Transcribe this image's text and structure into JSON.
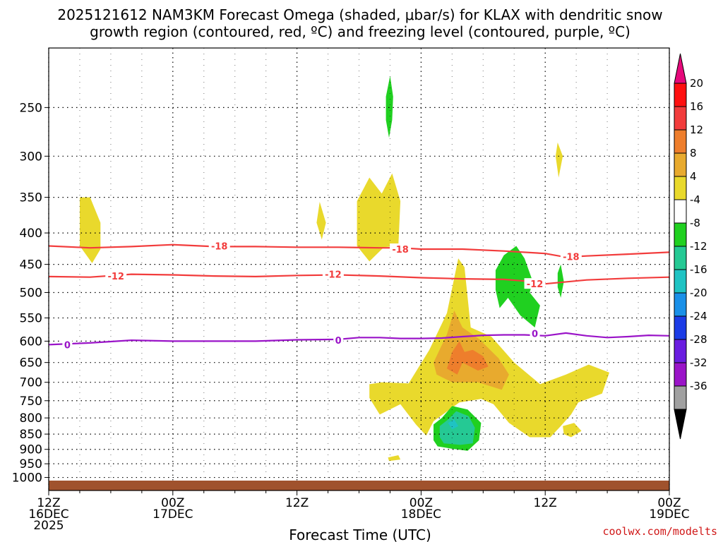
{
  "chart_data": {
    "type": "time-height contour",
    "title_line1": "2025121612 NAM3KM Forecast Omega (shaded, μbar/s) for KLAX with dendritic snow",
    "title_line2": "growth region (contoured, red, ºC) and freezing level (contoured, purple, ºC)",
    "xlabel": "Forecast Time (UTC)",
    "credit": "coolwx.com/modelts",
    "x_range_hours": [
      0,
      60
    ],
    "y_range_hpa": [
      1050,
      200
    ],
    "x_ticks": [
      {
        "h": 0,
        "l1": "12Z",
        "l2": "16DEC",
        "l3": "2025"
      },
      {
        "h": 12,
        "l1": "00Z",
        "l2": "17DEC",
        "l3": ""
      },
      {
        "h": 24,
        "l1": "12Z",
        "l2": "",
        "l3": ""
      },
      {
        "h": 36,
        "l1": "00Z",
        "l2": "18DEC",
        "l3": ""
      },
      {
        "h": 48,
        "l1": "12Z",
        "l2": "",
        "l3": ""
      },
      {
        "h": 60,
        "l1": "00Z",
        "l2": "19DEC",
        "l3": ""
      }
    ],
    "y_ticks": [
      250,
      300,
      350,
      400,
      450,
      500,
      550,
      600,
      650,
      700,
      750,
      800,
      850,
      900,
      950,
      1000
    ],
    "colorbar": {
      "labels": [
        "20",
        "16",
        "12",
        "8",
        "4",
        "-4",
        "-8",
        "-12",
        "-16",
        "-20",
        "-24",
        "-28",
        "-32",
        "-36"
      ],
      "colors": [
        "#ff1010",
        "#f23c3c",
        "#ee7e2c",
        "#e8aa2e",
        "#e9d92c",
        "#ffffff",
        "#20d020",
        "#25c994",
        "#1fc3c3",
        "#1a90e8",
        "#1c3ce6",
        "#6a1de0",
        "#9a14c8",
        "#a0a0a0"
      ],
      "top_color": "#e6097b",
      "bottom_color": "#000000"
    },
    "omega_regions": [
      {
        "name": "omega-pos-left-350",
        "value": 4,
        "color": "#e9d92c",
        "pts": [
          [
            3.0,
            350
          ],
          [
            4.0,
            350
          ],
          [
            5.0,
            385
          ],
          [
            5.0,
            425
          ],
          [
            4.2,
            448
          ],
          [
            3.0,
            420
          ]
        ]
      },
      {
        "name": "omega-pos-mid-380",
        "value": 4,
        "color": "#e9d92c",
        "pts": [
          [
            26.2,
            356
          ],
          [
            26.8,
            385
          ],
          [
            26.4,
            410
          ],
          [
            25.9,
            385
          ]
        ]
      },
      {
        "name": "omega-pos-mid-340",
        "value": 4,
        "color": "#e9d92c",
        "pts": [
          [
            29.8,
            355
          ],
          [
            31.0,
            325
          ],
          [
            32.2,
            345
          ],
          [
            33.2,
            320
          ],
          [
            34.0,
            355
          ],
          [
            33.8,
            420
          ],
          [
            32.4,
            422
          ],
          [
            31.0,
            445
          ],
          [
            29.8,
            420
          ]
        ]
      },
      {
        "name": "omega-pos-right-300",
        "value": 4,
        "color": "#e9d92c",
        "pts": [
          [
            49.2,
            285
          ],
          [
            49.7,
            300
          ],
          [
            49.3,
            325
          ],
          [
            49.0,
            300
          ]
        ]
      },
      {
        "name": "omega-pos-lower-main",
        "value": 4,
        "color": "#e9d92c",
        "pts": [
          [
            36.8,
            620
          ],
          [
            38.5,
            540
          ],
          [
            39.6,
            440
          ],
          [
            40.2,
            455
          ],
          [
            40.8,
            570
          ],
          [
            42.8,
            590
          ],
          [
            45.0,
            650
          ],
          [
            47.5,
            705
          ],
          [
            50.0,
            680
          ],
          [
            52.2,
            655
          ],
          [
            54.2,
            675
          ],
          [
            53.5,
            730
          ],
          [
            51.2,
            755
          ],
          [
            50.5,
            790
          ],
          [
            49.5,
            825
          ],
          [
            48.5,
            860
          ],
          [
            46.5,
            860
          ],
          [
            44.5,
            815
          ],
          [
            43.0,
            760
          ],
          [
            41.8,
            745
          ],
          [
            39.7,
            755
          ],
          [
            37.2,
            810
          ],
          [
            36.5,
            855
          ],
          [
            35.5,
            820
          ],
          [
            34.0,
            760
          ],
          [
            32.0,
            790
          ],
          [
            31.0,
            742
          ],
          [
            31.0,
            705
          ],
          [
            32.2,
            700
          ],
          [
            34.8,
            703
          ]
        ]
      },
      {
        "name": "omega-pos-small-850",
        "value": 4,
        "color": "#e9d92c",
        "pts": [
          [
            49.7,
            825
          ],
          [
            50.8,
            815
          ],
          [
            51.5,
            840
          ],
          [
            50.5,
            860
          ],
          [
            49.8,
            850
          ]
        ]
      },
      {
        "name": "omega-pos-small-930",
        "value": 4,
        "color": "#e9d92c",
        "pts": [
          [
            32.8,
            928
          ],
          [
            33.8,
            920
          ],
          [
            34.0,
            935
          ],
          [
            32.9,
            940
          ]
        ]
      },
      {
        "name": "omega-pos-8",
        "value": 8,
        "color": "#e8aa2e",
        "pts": [
          [
            37.2,
            650
          ],
          [
            38.5,
            585
          ],
          [
            39.2,
            535
          ],
          [
            40.0,
            570
          ],
          [
            41.6,
            595
          ],
          [
            43.5,
            640
          ],
          [
            44.5,
            680
          ],
          [
            43.8,
            720
          ],
          [
            41.5,
            700
          ],
          [
            39.0,
            700
          ],
          [
            37.5,
            680
          ]
        ]
      },
      {
        "name": "omega-pos-12",
        "value": 12,
        "color": "#ee7e2c",
        "pts": [
          [
            38.5,
            665
          ],
          [
            39.0,
            625
          ],
          [
            39.7,
            600
          ],
          [
            40.2,
            625
          ],
          [
            41.0,
            620
          ],
          [
            42.0,
            635
          ],
          [
            42.5,
            660
          ],
          [
            41.5,
            670
          ],
          [
            40.0,
            650
          ],
          [
            39.5,
            680
          ]
        ]
      },
      {
        "name": "omega-neg-upper-250",
        "value": -4,
        "color": "#20d020",
        "pts": [
          [
            32.6,
            240
          ],
          [
            33.0,
            222
          ],
          [
            33.3,
            240
          ],
          [
            33.2,
            262
          ],
          [
            32.9,
            280
          ],
          [
            32.6,
            262
          ]
        ]
      },
      {
        "name": "omega-neg-upper-right-450",
        "value": -4,
        "color": "#20d020",
        "pts": [
          [
            43.2,
            460
          ],
          [
            44.0,
            435
          ],
          [
            45.2,
            420
          ],
          [
            46.0,
            440
          ],
          [
            46.8,
            480
          ],
          [
            46.5,
            500
          ],
          [
            47.5,
            525
          ],
          [
            47.0,
            570
          ],
          [
            45.6,
            545
          ],
          [
            44.4,
            510
          ],
          [
            43.6,
            530
          ],
          [
            43.2,
            495
          ]
        ]
      },
      {
        "name": "omega-neg-small-480",
        "value": -4,
        "color": "#20d020",
        "pts": [
          [
            49.2,
            465
          ],
          [
            49.5,
            450
          ],
          [
            49.8,
            480
          ],
          [
            49.5,
            510
          ],
          [
            49.2,
            490
          ]
        ]
      },
      {
        "name": "omega-neg-lower",
        "value": -4,
        "color": "#20d020",
        "pts": [
          [
            37.2,
            820
          ],
          [
            38.0,
            800
          ],
          [
            39.0,
            765
          ],
          [
            40.5,
            775
          ],
          [
            41.8,
            815
          ],
          [
            41.6,
            870
          ],
          [
            40.5,
            905
          ],
          [
            39.0,
            898
          ],
          [
            37.6,
            890
          ],
          [
            37.2,
            870
          ]
        ]
      },
      {
        "name": "omega-neg-8-lower",
        "value": -8,
        "color": "#25c994",
        "pts": [
          [
            37.8,
            825
          ],
          [
            38.6,
            805
          ],
          [
            39.4,
            780
          ],
          [
            40.6,
            795
          ],
          [
            41.2,
            830
          ],
          [
            41.0,
            880
          ],
          [
            39.8,
            885
          ],
          [
            38.2,
            880
          ],
          [
            37.8,
            860
          ]
        ]
      },
      {
        "name": "omega-neg-12-core",
        "value": -12,
        "color": "#1fc3c3",
        "pts": [
          [
            38.6,
            815
          ],
          [
            39.2,
            805
          ],
          [
            39.6,
            825
          ],
          [
            39.0,
            835
          ]
        ]
      }
    ],
    "contours": [
      {
        "name": "isotherm-minus-18",
        "label": "-18",
        "color": "#f23c3c",
        "label_at": [
          [
            16.5,
            420
          ],
          [
            34.0,
            425
          ],
          [
            50.5,
            437
          ]
        ],
        "pts": [
          [
            0,
            420
          ],
          [
            4,
            423
          ],
          [
            8,
            421
          ],
          [
            12,
            418
          ],
          [
            16,
            421
          ],
          [
            20,
            421
          ],
          [
            24,
            422
          ],
          [
            28,
            422
          ],
          [
            32,
            423
          ],
          [
            34,
            423
          ],
          [
            36,
            425
          ],
          [
            40,
            425
          ],
          [
            44,
            428
          ],
          [
            48,
            432
          ],
          [
            50,
            438
          ],
          [
            52,
            436
          ],
          [
            56,
            433
          ],
          [
            60,
            430
          ]
        ]
      },
      {
        "name": "isotherm-minus-12",
        "label": "-12",
        "color": "#f23c3c",
        "label_at": [
          [
            6.5,
            470
          ],
          [
            27.5,
            467
          ],
          [
            47.0,
            484
          ]
        ],
        "pts": [
          [
            0,
            471
          ],
          [
            4,
            472
          ],
          [
            8,
            467
          ],
          [
            12,
            468
          ],
          [
            16,
            470
          ],
          [
            20,
            471
          ],
          [
            24,
            469
          ],
          [
            28,
            468
          ],
          [
            32,
            470
          ],
          [
            36,
            473
          ],
          [
            40,
            475
          ],
          [
            44,
            476
          ],
          [
            46,
            479
          ],
          [
            48,
            484
          ],
          [
            52,
            477
          ],
          [
            56,
            474
          ],
          [
            60,
            472
          ]
        ]
      },
      {
        "name": "freezing-level-0",
        "label": "0",
        "color": "#9a14c8",
        "label_at": [
          [
            1.8,
            608
          ],
          [
            28.0,
            598
          ],
          [
            47.0,
            583
          ]
        ],
        "pts": [
          [
            0,
            608
          ],
          [
            4,
            604
          ],
          [
            8,
            598
          ],
          [
            12,
            600
          ],
          [
            16,
            600
          ],
          [
            20,
            600
          ],
          [
            24,
            597
          ],
          [
            28,
            596
          ],
          [
            30,
            592
          ],
          [
            32,
            592
          ],
          [
            34,
            594
          ],
          [
            36,
            594
          ],
          [
            38,
            593
          ],
          [
            40,
            590
          ],
          [
            42,
            587
          ],
          [
            44,
            586
          ],
          [
            46,
            586
          ],
          [
            48,
            588
          ],
          [
            50,
            582
          ],
          [
            52,
            588
          ],
          [
            54,
            592
          ],
          [
            56,
            590
          ],
          [
            58,
            587
          ],
          [
            60,
            588
          ]
        ]
      }
    ]
  }
}
